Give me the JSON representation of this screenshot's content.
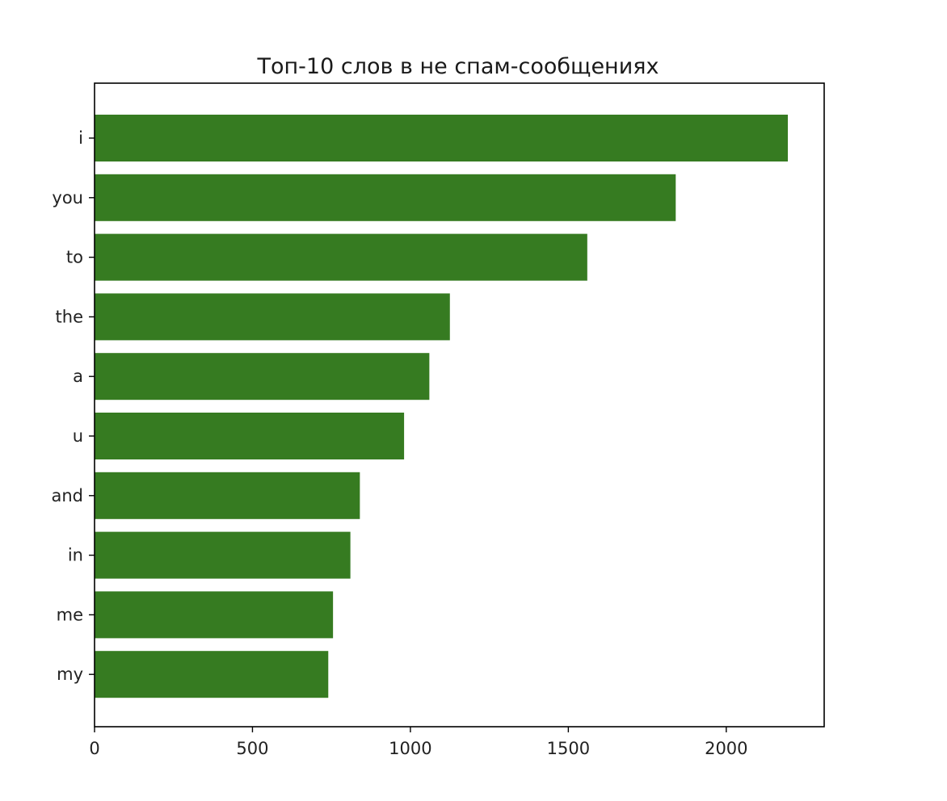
{
  "chart_data": {
    "type": "bar",
    "orientation": "horizontal",
    "title": "Топ-10 слов в не спам-сообщениях",
    "xlabel": "",
    "ylabel": "",
    "categories": [
      "i",
      "you",
      "to",
      "the",
      "a",
      "u",
      "and",
      "in",
      "me",
      "my"
    ],
    "values": [
      2195,
      1840,
      1560,
      1125,
      1060,
      980,
      840,
      810,
      755,
      740
    ],
    "xlim": [
      0,
      2310
    ],
    "xticks": [
      0,
      500,
      1000,
      1500,
      2000
    ],
    "grid": false,
    "legend": "none",
    "bar_color": "#367b21"
  }
}
